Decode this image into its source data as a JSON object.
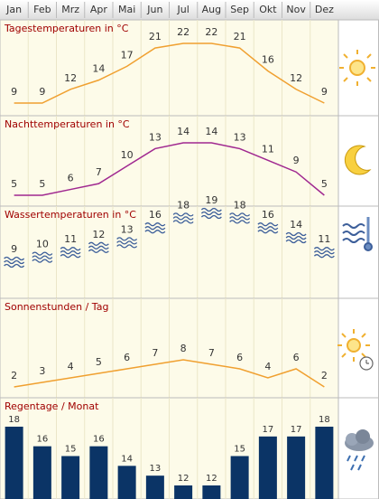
{
  "header": {
    "months": [
      "Jan",
      "Feb",
      "Mrz",
      "Apr",
      "Mai",
      "Jun",
      "Jul",
      "Aug",
      "Sep",
      "Okt",
      "Nov",
      "Dez"
    ]
  },
  "chart_data": [
    {
      "type": "line",
      "title": "Tagestemperaturen in °C",
      "values": [
        9,
        9,
        12,
        14,
        17,
        21,
        22,
        22,
        21,
        16,
        12,
        9
      ],
      "color": "#f0a030"
    },
    {
      "type": "line",
      "title": "Nachttemperaturen in °C",
      "values": [
        5,
        5,
        6,
        7,
        10,
        13,
        14,
        14,
        13,
        11,
        9,
        5
      ],
      "color": "#a02890"
    },
    {
      "type": "waves",
      "title": "Wassertemperaturen in °C",
      "values": [
        9,
        10,
        11,
        12,
        13,
        16,
        18,
        19,
        18,
        16,
        14,
        11
      ],
      "color": "#3d5f9a"
    },
    {
      "type": "line",
      "title": "Sonnenstunden / Tag",
      "values": [
        2,
        3,
        4,
        5,
        6,
        7,
        8,
        7,
        6,
        4,
        6,
        2
      ],
      "color": "#f0a030"
    },
    {
      "type": "bar",
      "title": "Regentage / Monat",
      "values": [
        18,
        16,
        15,
        16,
        14,
        13,
        12,
        12,
        15,
        17,
        17,
        18
      ],
      "color": "#0b3466"
    }
  ]
}
